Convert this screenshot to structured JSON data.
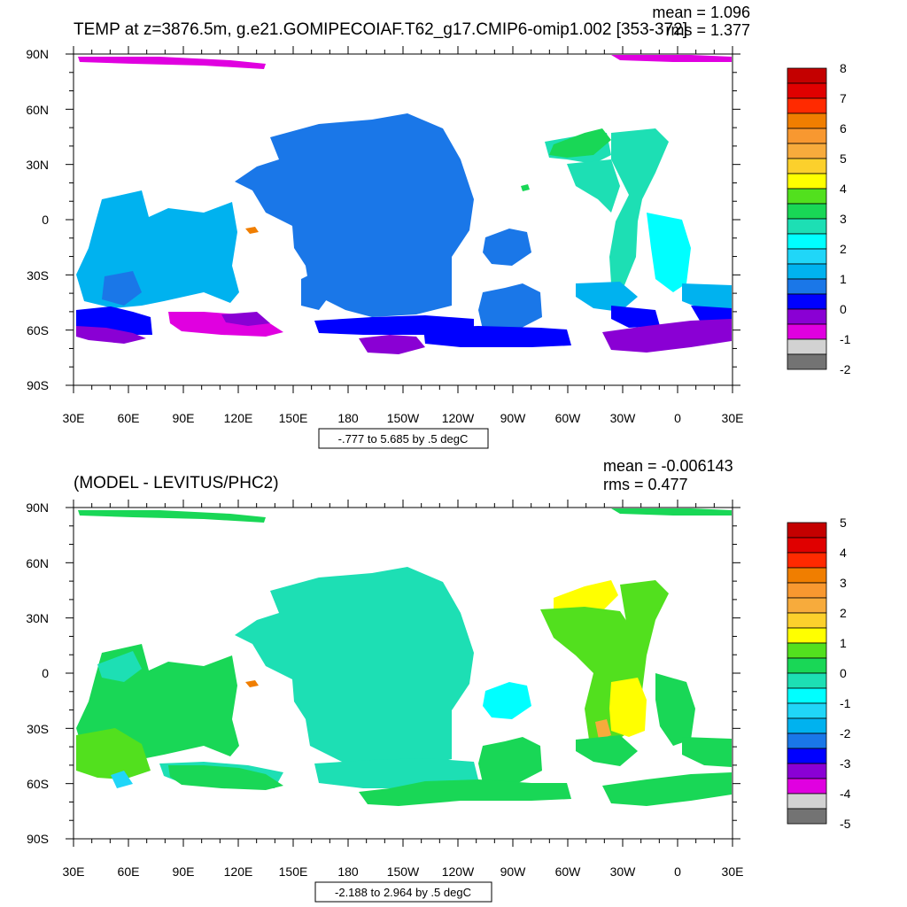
{
  "top_panel": {
    "title": "TEMP at z=3876.5m, g.e21.GOMIPECOIAF.T62_g17.CMIP6-omip1.002 [353-372]",
    "mean_text": "mean = 1.096",
    "rms_text": "rms = 1.377",
    "range_text": "-.777 to 5.685 by .5 degC",
    "colorbar_labels": [
      "8",
      "7",
      "6",
      "5",
      "4",
      "3",
      "2",
      "1",
      "0",
      "-1",
      "-2"
    ]
  },
  "bottom_panel": {
    "title": "(MODEL - LEVITUS/PHC2)",
    "mean_text": "mean = -0.006143",
    "rms_text": "rms = 0.477",
    "range_text": "-2.188 to 2.964 by .5 degC",
    "colorbar_labels": [
      "5",
      "4",
      "3",
      "2",
      "1",
      "0",
      "-1",
      "-2",
      "-3",
      "-4",
      "-5"
    ]
  },
  "lat_labels": [
    "90N",
    "60N",
    "30N",
    "0",
    "30S",
    "60S",
    "90S"
  ],
  "lon_labels": [
    "30E",
    "60E",
    "90E",
    "120E",
    "150E",
    "180",
    "150W",
    "120W",
    "90W",
    "60W",
    "30W",
    "0",
    "30E"
  ],
  "colorbar_colors": [
    "#c40000",
    "#e00000",
    "#ff2a00",
    "#f07e00",
    "#f89830",
    "#f7ab3c",
    "#fcd02c",
    "#ffff00",
    "#52e01e",
    "#19d756",
    "#1ddfb4",
    "#00ffff",
    "#20d6f8",
    "#00b2ef",
    "#1a77e8",
    "#0000ff",
    "#8a00d4",
    "#e000e0",
    "#d2d2d2",
    "#737373"
  ]
}
